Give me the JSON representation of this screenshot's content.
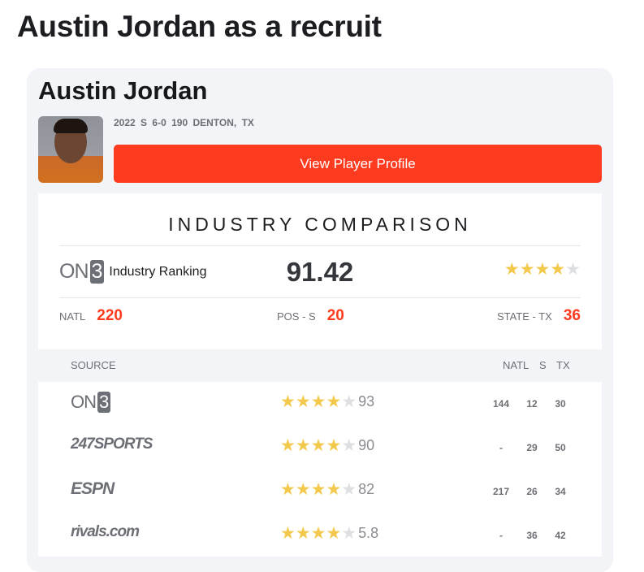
{
  "page_title": "Austin Jordan as a recruit",
  "player": {
    "name": "Austin Jordan",
    "class": "2022",
    "position": "S",
    "height": "6-0",
    "weight": "190",
    "hometown": "DENTON, TX"
  },
  "profile_button": "View Player Profile",
  "comparison": {
    "title": "INDUSTRY COMPARISON",
    "brand": "ON3",
    "brand_mark": "ON",
    "brand_digit": "3",
    "label": "Industry Ranking",
    "score": "91.42",
    "stars": 4,
    "max_stars": 5,
    "ranks": {
      "natl_label": "NATL",
      "natl": "220",
      "pos_label": "POS - S",
      "pos": "20",
      "state_label": "STATE - TX",
      "state": "36"
    }
  },
  "table": {
    "headers": {
      "source": "SOURCE",
      "natl": "NATL",
      "pos": "S",
      "state": "TX"
    },
    "rows": [
      {
        "source": "On3",
        "stars": 4,
        "rating": "93",
        "natl": "144",
        "pos": "12",
        "state": "30"
      },
      {
        "source": "247SPORTS",
        "stars": 4,
        "rating": "90",
        "natl": "-",
        "pos": "29",
        "state": "50"
      },
      {
        "source": "ESPN",
        "stars": 4,
        "rating": "82",
        "natl": "217",
        "pos": "26",
        "state": "34"
      },
      {
        "source": "rivals.com",
        "stars": 4,
        "rating": "5.8",
        "natl": "-",
        "pos": "36",
        "state": "42"
      }
    ]
  },
  "colors": {
    "accent": "#ff3b1f",
    "star_filled": "#f2c94c",
    "star_empty": "#dedfe2"
  }
}
